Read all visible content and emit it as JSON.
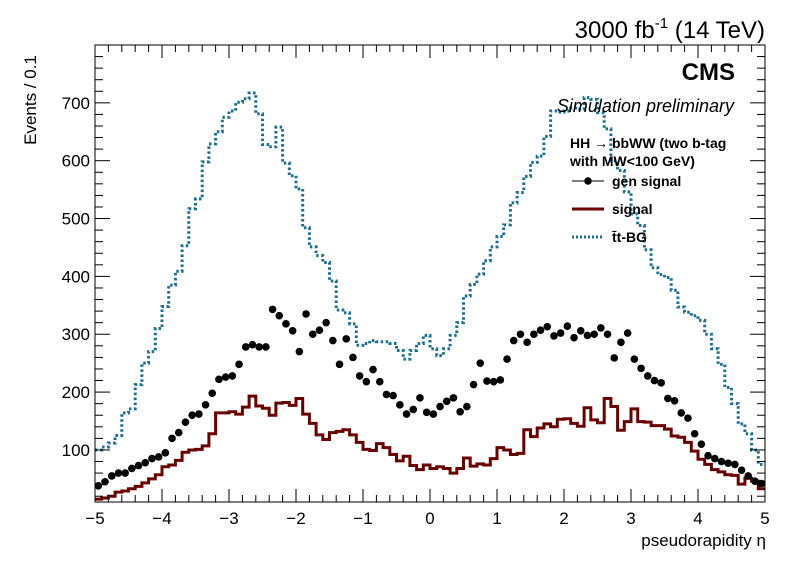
{
  "header": {
    "lumi_prefix": "3000 fb",
    "lumi_exp": "-1",
    "lumi_suffix": " (14 TeV)",
    "experiment": "CMS",
    "status": "Simulation preliminary"
  },
  "legend": {
    "header_line1": "HH → bbWW (two b-tag",
    "header_line2": "with MW<100 GeV)"
  },
  "colors": {
    "gen_signal": "#000000",
    "signal": "#6b0000",
    "ttbar": "#1a6e8e"
  },
  "chart_data": {
    "type": "line",
    "xlabel": "pseudorapidity η",
    "ylabel": "Events / 0.1",
    "xlim": [
      -5,
      5
    ],
    "ylim": [
      10,
      800
    ],
    "xticks": [
      -5,
      -4,
      -3,
      -2,
      -1,
      0,
      1,
      2,
      3,
      4,
      5
    ],
    "yticks": [
      100,
      200,
      300,
      400,
      500,
      600,
      700
    ],
    "legend_position": "top-right",
    "bin_width": 0.1,
    "series": [
      {
        "name": "gen signal",
        "style": "markers",
        "x": [
          -4.95,
          -4.85,
          -4.75,
          -4.65,
          -4.55,
          -4.45,
          -4.35,
          -4.25,
          -4.15,
          -4.05,
          -3.95,
          -3.85,
          -3.75,
          -3.65,
          -3.55,
          -3.45,
          -3.35,
          -3.25,
          -3.15,
          -3.05,
          -2.95,
          -2.85,
          -2.75,
          -2.65,
          -2.55,
          -2.45,
          -2.35,
          -2.25,
          -2.15,
          -2.05,
          -1.95,
          -1.85,
          -1.75,
          -1.65,
          -1.55,
          -1.45,
          -1.35,
          -1.25,
          -1.15,
          -1.05,
          -0.95,
          -0.85,
          -0.75,
          -0.65,
          -0.55,
          -0.45,
          -0.35,
          -0.25,
          -0.15,
          -0.05,
          0.05,
          0.15,
          0.25,
          0.35,
          0.45,
          0.55,
          0.65,
          0.75,
          0.85,
          0.95,
          1.05,
          1.15,
          1.25,
          1.35,
          1.45,
          1.55,
          1.65,
          1.75,
          1.85,
          1.95,
          2.05,
          2.15,
          2.25,
          2.35,
          2.45,
          2.55,
          2.65,
          2.75,
          2.85,
          2.95,
          3.05,
          3.15,
          3.25,
          3.35,
          3.45,
          3.55,
          3.65,
          3.75,
          3.85,
          3.95,
          4.05,
          4.15,
          4.25,
          4.35,
          4.45,
          4.55,
          4.65,
          4.75,
          4.85,
          4.95
        ],
        "values": [
          38,
          45,
          55,
          60,
          60,
          68,
          73,
          78,
          85,
          88,
          95,
          120,
          130,
          148,
          160,
          162,
          178,
          198,
          222,
          226,
          228,
          248,
          278,
          282,
          278,
          278,
          343,
          332,
          318,
          306,
          270,
          335,
          300,
          307,
          320,
          289,
          248,
          292,
          260,
          228,
          218,
          239,
          218,
          196,
          194,
          178,
          162,
          170,
          190,
          165,
          162,
          175,
          184,
          190,
          166,
          175,
          213,
          250,
          219,
          218,
          221,
          257,
          289,
          300,
          286,
          300,
          307,
          313,
          297,
          302,
          314,
          294,
          306,
          298,
          300,
          311,
          300,
          259,
          286,
          302,
          257,
          241,
          228,
          220,
          216,
          189,
          185,
          164,
          155,
          128,
          110,
          90,
          85,
          80,
          77,
          75,
          65,
          55,
          46,
          42
        ]
      },
      {
        "name": "signal",
        "style": "step",
        "x_edges_start": -5,
        "values": [
          15,
          17,
          20,
          27,
          29,
          33,
          37,
          43,
          50,
          57,
          71,
          74,
          82,
          96,
          100,
          101,
          107,
          128,
          164,
          164,
          166,
          162,
          174,
          193,
          176,
          172,
          160,
          181,
          182,
          177,
          189,
          162,
          146,
          126,
          118,
          130,
          132,
          135,
          126,
          113,
          101,
          99,
          111,
          104,
          92,
          81,
          89,
          73,
          66,
          74,
          68,
          71,
          68,
          60,
          68,
          86,
          72,
          76,
          74,
          85,
          104,
          100,
          92,
          94,
          135,
          123,
          138,
          145,
          140,
          153,
          154,
          146,
          141,
          173,
          152,
          147,
          189,
          175,
          134,
          149,
          171,
          149,
          148,
          142,
          142,
          136,
          124,
          122,
          113,
          98,
          84,
          75,
          66,
          62,
          57,
          56,
          41,
          51,
          46,
          33
        ]
      },
      {
        "name": "t̄t-BG",
        "style": "step-dotted",
        "x_edges_start": -5,
        "values": [
          100,
          105,
          112,
          125,
          164,
          171,
          213,
          250,
          270,
          310,
          348,
          385,
          409,
          453,
          517,
          534,
          598,
          629,
          650,
          675,
          686,
          701,
          707,
          717,
          681,
          628,
          624,
          658,
          596,
          574,
          551,
          484,
          451,
          436,
          424,
          392,
          342,
          337,
          318,
          281,
          284,
          289,
          287,
          287,
          284,
          272,
          257,
          272,
          284,
          298,
          275,
          263,
          275,
          298,
          320,
          366,
          386,
          404,
          427,
          451,
          469,
          489,
          527,
          545,
          573,
          597,
          608,
          642,
          686,
          684,
          686,
          691,
          689,
          709,
          706,
          683,
          655,
          600,
          583,
          546,
          508,
          488,
          446,
          415,
          403,
          398,
          376,
          347,
          338,
          332,
          324,
          300,
          275,
          248,
          208,
          180,
          145,
          128,
          100,
          75
        ]
      }
    ]
  }
}
